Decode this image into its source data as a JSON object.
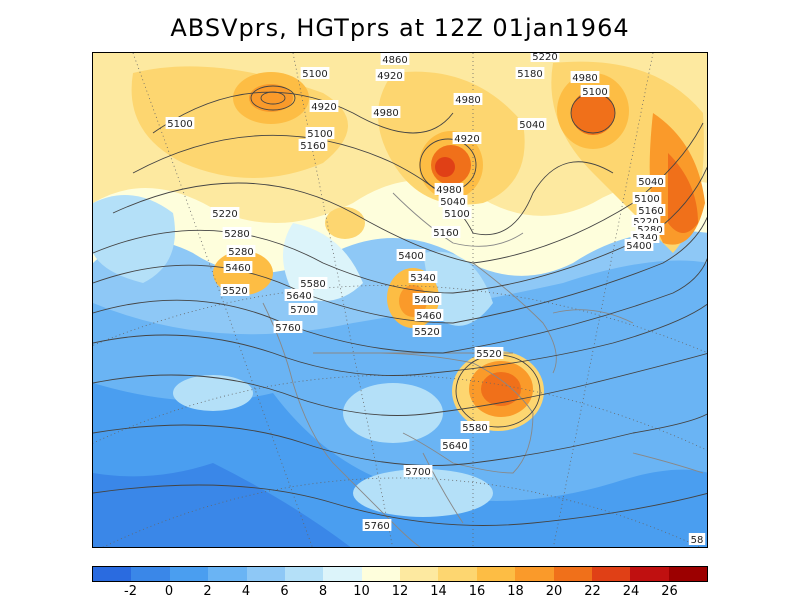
{
  "title": "ABSVprs, HGTprs at 12Z  01jan1964",
  "colorbar": {
    "colors": [
      "#2a6be0",
      "#3a87e8",
      "#4a9ef0",
      "#6ab4f4",
      "#8ec8f6",
      "#b4e0f8",
      "#dcf4fa",
      "#fefedc",
      "#fde9a0",
      "#fdd670",
      "#fdbd44",
      "#fa9a2a",
      "#f0701a",
      "#e04016",
      "#c01010",
      "#9c0000"
    ],
    "tick_labels": [
      "-2",
      "0",
      "2",
      "4",
      "6",
      "8",
      "10",
      "12",
      "14",
      "16",
      "18",
      "20",
      "22",
      "24",
      "26"
    ]
  },
  "contour_labels": [
    "5100",
    "4860",
    "4920",
    "5220",
    "5180",
    "4980",
    "5100",
    "4920",
    "5100",
    "4980",
    "4980",
    "5040",
    "5100",
    "5160",
    "4920",
    "5040",
    "4980",
    "5100",
    "5040",
    "5160",
    "5100",
    "5220",
    "5160",
    "5280",
    "5220",
    "5280",
    "5340",
    "5400",
    "5280",
    "5400",
    "5340",
    "5460",
    "5520",
    "5400",
    "5460",
    "5580",
    "5640",
    "5520",
    "5700",
    "5760",
    "5520",
    "5580",
    "5640",
    "5700",
    "5760",
    "58"
  ]
}
